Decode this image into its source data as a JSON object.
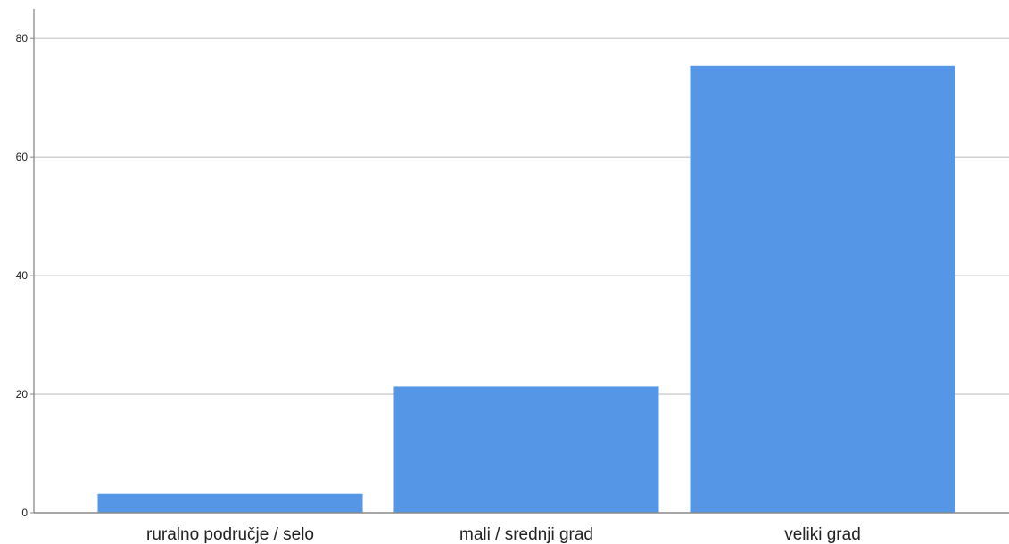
{
  "chart_data": {
    "type": "bar",
    "title": "",
    "xlabel": "",
    "ylabel": "",
    "categories": [
      "ruralno područje / selo",
      "mali / srednji grad",
      "veliki grad"
    ],
    "values": [
      3.2,
      21.3,
      75.4
    ],
    "ylim": [
      0,
      85
    ],
    "yticks": [
      0,
      20,
      40,
      60,
      80
    ],
    "grid": true,
    "bar_color": "#5596E6",
    "grid_color": "#CCCCCC",
    "axis_color": "#888888"
  }
}
